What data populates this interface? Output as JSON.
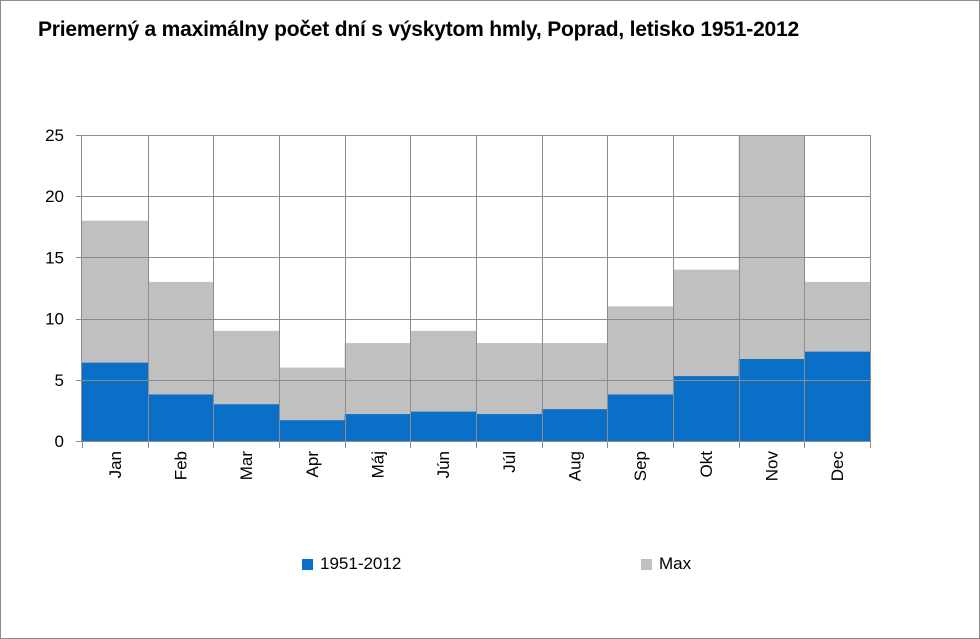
{
  "chart_data": {
    "type": "area",
    "title": "Priemerný a maximálny počet dní s výskytom hmly, Poprad, letisko 1951-2012",
    "categories": [
      "Jan",
      "Feb",
      "Mar",
      "Apr",
      "Máj",
      "Jún",
      "Júl",
      "Aug",
      "Sep",
      "Okt",
      "Nov",
      "Dec"
    ],
    "series": [
      {
        "name": "1951-2012",
        "color": "#0a6fc7",
        "values": [
          6.4,
          3.8,
          3.0,
          1.7,
          2.2,
          2.4,
          2.2,
          2.6,
          3.8,
          5.3,
          6.7,
          7.3
        ]
      },
      {
        "name": "Max",
        "color": "#c0c0c0",
        "values": [
          18,
          13,
          9,
          6,
          8,
          9,
          8,
          8,
          11,
          14,
          25,
          13
        ]
      }
    ],
    "ylim": [
      0,
      25
    ],
    "yticks": [
      0,
      5,
      10,
      15,
      20,
      25
    ],
    "grid": true,
    "legend": "bottom"
  }
}
